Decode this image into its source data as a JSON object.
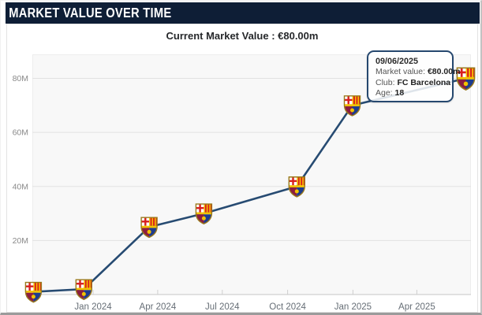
{
  "header": {
    "title": "MARKET VALUE OVER TIME"
  },
  "subtitle": {
    "text": "Current Market Value : €80.00m"
  },
  "tooltip": {
    "date": "09/06/2025",
    "market_value_label": "Market value: ",
    "market_value": "€80.00m",
    "club_label": "Club: ",
    "club": "FC Barcelona",
    "age_label": "Age: ",
    "age": "18"
  },
  "icons": {
    "point_marker": "fc-barcelona-crest-icon"
  },
  "colors": {
    "header_bg": "#0e1e36",
    "line": "#274b72",
    "tooltip_border": "#26486f",
    "plot_bg": "#f8f8f8",
    "gridline": "#e2e2e2",
    "axis_line": "#c6c6c6",
    "y_label": "#8a8a8a",
    "x_label": "#666e76"
  },
  "chart_data": {
    "type": "line",
    "title": "Current Market Value : €80.00m",
    "series_name": "Market value",
    "club": "FC Barcelona",
    "y_unit": "€ million",
    "ylim": [
      0,
      88
    ],
    "grid": "horizontal-only",
    "x_ticks": [
      "Jan 2024",
      "Apr 2024",
      "Jul 2024",
      "Oct 2024",
      "Jan 2025",
      "Apr 2025"
    ],
    "y_ticks": [
      "20M",
      "40M",
      "60M",
      "80M"
    ],
    "points": [
      {
        "date": "2023-10-09",
        "value_m": 1
      },
      {
        "date": "2023-12-19",
        "value_m": 2
      },
      {
        "date": "2024-03-20",
        "value_m": 25
      },
      {
        "date": "2024-06-05",
        "value_m": 30
      },
      {
        "date": "2024-10-14",
        "value_m": 40
      },
      {
        "date": "2024-12-31",
        "value_m": 70
      },
      {
        "date": "2025-06-09",
        "value_m": 80
      }
    ]
  }
}
